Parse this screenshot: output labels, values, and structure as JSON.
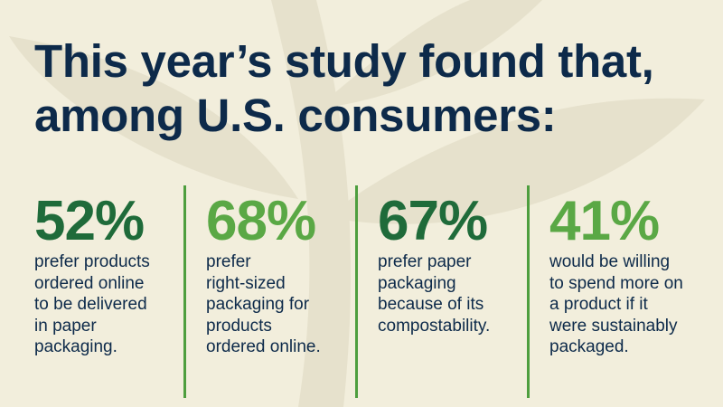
{
  "header": {
    "title_lines": [
      "This year’s study found that,",
      "among U.S. consumers:"
    ]
  },
  "stats": [
    {
      "value": "52%",
      "lines": [
        "prefer products",
        "ordered online",
        "to be delivered",
        "in paper",
        "packaging."
      ]
    },
    {
      "value": "68%",
      "lines": [
        "prefer",
        "right-sized",
        "packaging for",
        "products",
        "ordered online."
      ]
    },
    {
      "value": "67%",
      "lines": [
        "prefer paper",
        "packaging",
        "because of its",
        "compostability."
      ]
    },
    {
      "value": "41%",
      "lines": [
        "would be willing",
        "to spend more on",
        "a product if it",
        "were sustainably",
        "packaged."
      ]
    }
  ]
}
